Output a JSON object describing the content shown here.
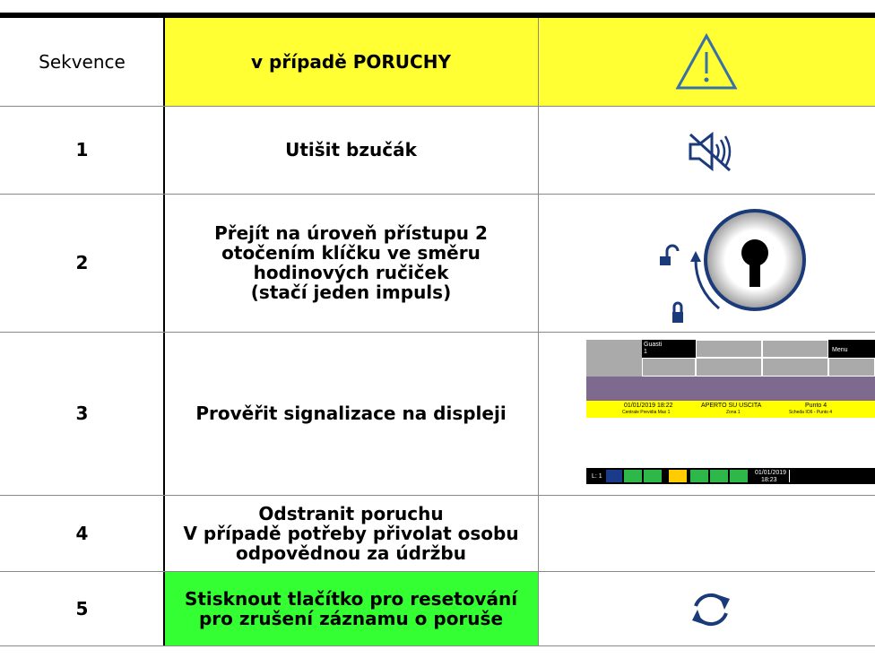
{
  "header": {
    "sequence": "Sekvence",
    "case": "v případě PORUCHY"
  },
  "rows": [
    {
      "step": "1",
      "lines": [
        "Utišit bzučák"
      ]
    },
    {
      "step": "2",
      "lines": [
        "Přejít na úroveň přístupu 2",
        "otočením klíčku ve směru",
        "hodinových ručiček",
        "(stačí jeden impuls)"
      ]
    },
    {
      "step": "3",
      "lines": [
        "Prověřit signalizace na displeji"
      ]
    },
    {
      "step": "4",
      "lines": [
        "Odstranit poruchu",
        "V případě potřeby přivolat osobu",
        "odpovědnou za údržbu"
      ]
    },
    {
      "step": "5",
      "lines": [
        "Stisknout tlačítko pro resetování",
        "pro zrušení záznamu o poruše"
      ]
    }
  ],
  "display": {
    "faults_label": "Guasti",
    "faults_count": "1",
    "menu": "Menu",
    "event_time": "01/01/2019 18:22",
    "panel": "Centrale Previdia Max 1",
    "event": "APERTO SU USCITA",
    "zone": "Zona 1",
    "point": "Punto 4",
    "board": "Scheda IO6 - Punto 4",
    "level": "L: 1",
    "date": "01/01/2019",
    "time": "18:23"
  }
}
